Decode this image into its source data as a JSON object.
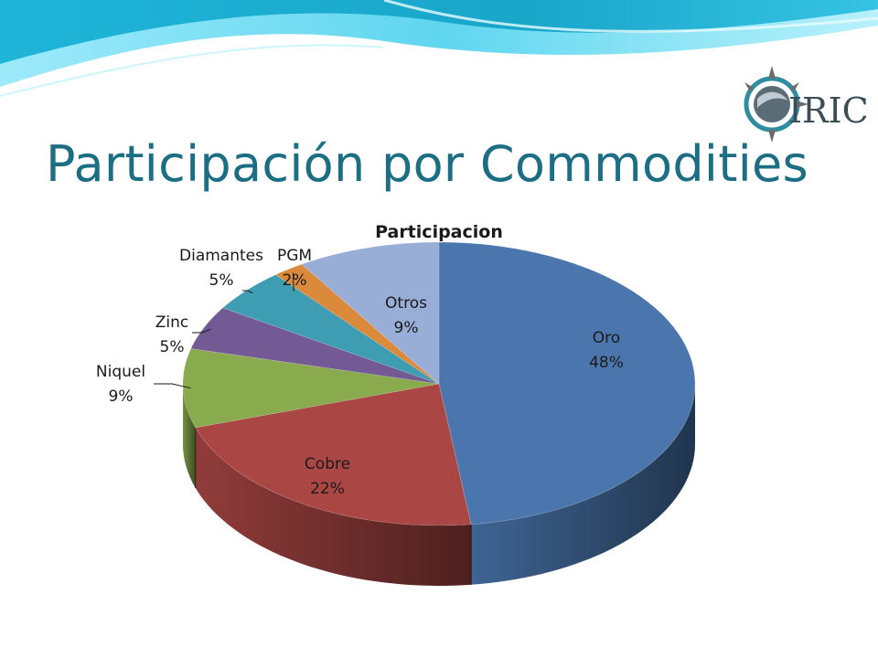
{
  "slide": {
    "title": "Participación por Commodities",
    "logo_text": "IRIC",
    "colors": {
      "title": "#1b6e83",
      "wave_light": "#7fe2f4",
      "wave_dark": "#13a3c7"
    }
  },
  "chart_data": {
    "type": "pie",
    "style": "3d",
    "title": "Participacion",
    "slices": [
      {
        "label": "Oro",
        "value": 48,
        "display": "48%",
        "color": "#4a76ad"
      },
      {
        "label": "Cobre",
        "value": 22,
        "display": "22%",
        "color": "#aa4744"
      },
      {
        "label": "Niquel",
        "value": 9,
        "display": "9%",
        "color": "#8aaa4e"
      },
      {
        "label": "Zinc",
        "value": 5,
        "display": "5%",
        "color": "#735a94"
      },
      {
        "label": "Diamantes",
        "value": 5,
        "display": "5%",
        "color": "#3f9db3"
      },
      {
        "label": "PGM",
        "value": 2,
        "display": "2%",
        "color": "#db8a3c"
      },
      {
        "label": "Otros",
        "value": 9,
        "display": "9%",
        "color": "#98aed6"
      }
    ]
  }
}
